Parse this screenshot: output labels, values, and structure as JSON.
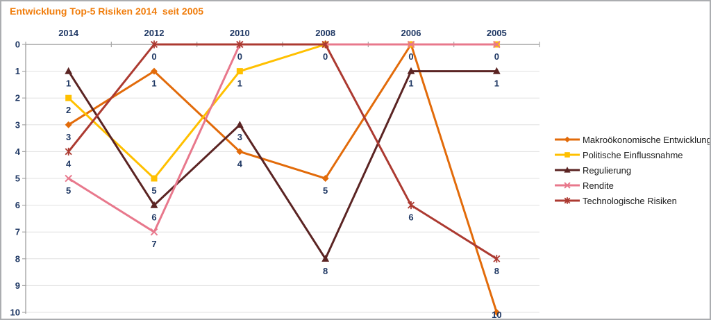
{
  "chart_data": {
    "type": "line",
    "title": "Entwicklung Top-5 Risiken 2014  seit 2005",
    "categories": [
      "2014",
      "2012",
      "2010",
      "2008",
      "2006",
      "2005"
    ],
    "series": [
      {
        "name": "Makroökonomische Entwicklung",
        "marker": "diamond",
        "color": "#E26B0A",
        "values": [
          3,
          1,
          4,
          5,
          0,
          10
        ]
      },
      {
        "name": "Politische Einflussnahme",
        "marker": "square",
        "color": "#FFC000",
        "values": [
          2,
          5,
          1,
          0,
          0,
          0
        ]
      },
      {
        "name": "Regulierung",
        "marker": "triangle",
        "color": "#5B2423",
        "values": [
          1,
          6,
          3,
          8,
          1,
          1
        ]
      },
      {
        "name": "Rendite",
        "marker": "x",
        "color": "#E8788C",
        "values": [
          5,
          7,
          0,
          0,
          0,
          0
        ]
      },
      {
        "name": "Technologische Risiken",
        "marker": "star",
        "color": "#AC3A31",
        "values": [
          4,
          0,
          0,
          0,
          6,
          8
        ]
      }
    ],
    "xlabel": "",
    "ylabel": "",
    "x_axis_position": "top",
    "y_inverted": true,
    "ylim": [
      0,
      10
    ],
    "y_ticks": [
      "0",
      "1",
      "2",
      "3",
      "4",
      "5",
      "6",
      "7",
      "8",
      "9",
      "10"
    ],
    "grid": "horizontal",
    "legend_position": "right",
    "data_labels": "below-point",
    "colors": {
      "title": "#F07D0C",
      "data_label": "#1F3864",
      "axis_label": "#1F3864",
      "grid_line": "#E0E0E0",
      "axis_line": "#A6A6A6",
      "legend_text": "#1A1A1A",
      "frame_border": "#ABADB0",
      "background": "#FFFFFF"
    }
  }
}
